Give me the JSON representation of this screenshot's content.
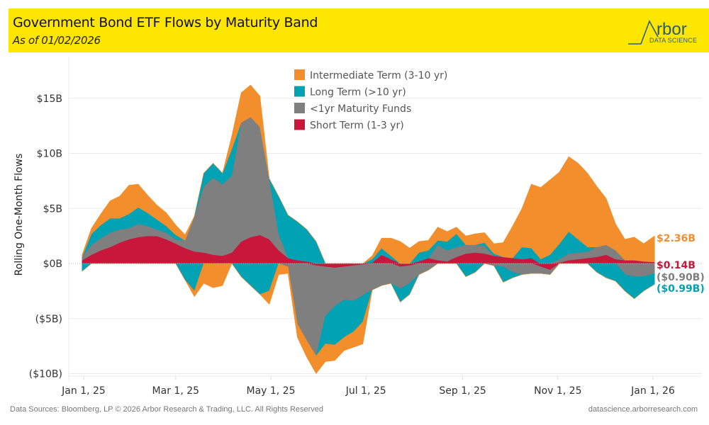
{
  "header": {
    "title": "Government Bond ETF Flows by Maturity Band",
    "subtitle": "As of 01/02/2026",
    "logo_word": "rbor",
    "logo_sub": "DATA SCIENCE"
  },
  "footer": {
    "source": "Data Sources: Bloomberg, LP © 2026 Arbor Research & Trading, LLC. All Rights Reserved",
    "website": "datascience.arborresearch.com"
  },
  "chart_data": {
    "type": "area",
    "stacked": true,
    "title": "Government Bond ETF Flows by Maturity Band",
    "subtitle": "As of 01/02/2026",
    "xlabel": "",
    "ylabel": "Rolling One-Month Flows",
    "ylim": [
      -10.5,
      18.5
    ],
    "yticks": [
      {
        "value": 15,
        "label": "$15B"
      },
      {
        "value": 10,
        "label": "$10B"
      },
      {
        "value": 5,
        "label": "$5B"
      },
      {
        "value": 0,
        "label": "$0B"
      },
      {
        "value": -5,
        "label": "($5B)"
      },
      {
        "value": -10,
        "label": "($10B)"
      }
    ],
    "xlim": [
      "2024-12-31",
      "2026-01-02"
    ],
    "xticks": [
      {
        "date": "2025-01-01",
        "label": "Jan 1, 25"
      },
      {
        "date": "2025-03-01",
        "label": "Mar 1, 25"
      },
      {
        "date": "2025-05-01",
        "label": "May 1, 25"
      },
      {
        "date": "2025-07-01",
        "label": "Jul 1, 25"
      },
      {
        "date": "2025-09-01",
        "label": "Sep 1, 25"
      },
      {
        "date": "2025-11-01",
        "label": "Nov 1, 25"
      },
      {
        "date": "2026-01-01",
        "label": "Jan 1, 26"
      }
    ],
    "grid": true,
    "legend_position": "top-center",
    "units": "USD billions",
    "x": [
      "2024-12-31",
      "2025-01-06",
      "2025-01-12",
      "2025-01-18",
      "2025-01-24",
      "2025-01-30",
      "2025-02-05",
      "2025-02-11",
      "2025-02-17",
      "2025-02-23",
      "2025-03-01",
      "2025-03-07",
      "2025-03-13",
      "2025-03-19",
      "2025-03-25",
      "2025-03-31",
      "2025-04-06",
      "2025-04-12",
      "2025-04-18",
      "2025-04-24",
      "2025-04-30",
      "2025-05-06",
      "2025-05-12",
      "2025-05-18",
      "2025-05-24",
      "2025-05-30",
      "2025-06-05",
      "2025-06-11",
      "2025-06-17",
      "2025-06-23",
      "2025-06-29",
      "2025-07-05",
      "2025-07-11",
      "2025-07-17",
      "2025-07-23",
      "2025-07-29",
      "2025-08-04",
      "2025-08-10",
      "2025-08-16",
      "2025-08-22",
      "2025-08-28",
      "2025-09-03",
      "2025-09-09",
      "2025-09-15",
      "2025-09-21",
      "2025-09-27",
      "2025-10-03",
      "2025-10-09",
      "2025-10-15",
      "2025-10-21",
      "2025-10-27",
      "2025-11-02",
      "2025-11-08",
      "2025-11-14",
      "2025-11-20",
      "2025-11-26",
      "2025-12-02",
      "2025-12-08",
      "2025-12-14",
      "2025-12-20",
      "2025-12-26",
      "2026-01-02"
    ],
    "series": [
      {
        "name": "Short Term (1-3 yr)",
        "color": "#c8173b",
        "values": [
          0.3,
          0.8,
          1.2,
          1.5,
          1.9,
          2.2,
          2.4,
          2.5,
          2.5,
          2.2,
          1.8,
          1.4,
          1.1,
          1.0,
          0.8,
          0.7,
          1.0,
          2.0,
          2.4,
          2.6,
          2.2,
          1.2,
          0.5,
          0.3,
          0.2,
          -0.2,
          -0.3,
          -0.4,
          -0.3,
          -0.2,
          -0.1,
          0.1,
          0.8,
          0.4,
          -0.3,
          -0.2,
          0.2,
          0.5,
          0.3,
          0.2,
          0.6,
          0.9,
          1.0,
          0.9,
          0.7,
          0.6,
          0.5,
          0.4,
          0.5,
          -0.3,
          -0.6,
          0.1,
          0.3,
          0.4,
          0.5,
          0.6,
          0.8,
          0.4,
          0.3,
          0.3,
          0.2,
          0.14
        ]
      },
      {
        "name": "<1yr Maturity Funds",
        "color": "#7f7f7f",
        "values": [
          0.3,
          0.9,
          1.1,
          1.3,
          1.2,
          1.0,
          1.2,
          0.9,
          0.6,
          0.6,
          0.4,
          0.7,
          3.2,
          6.0,
          7.0,
          6.5,
          7.0,
          10.8,
          10.9,
          9.8,
          5.5,
          1.5,
          -0.3,
          -5.5,
          -7.0,
          -8.2,
          -4.5,
          -3.5,
          -3.0,
          -3.2,
          -2.8,
          -2.4,
          -2.0,
          -1.8,
          -2.0,
          -1.6,
          -1.0,
          -0.6,
          1.4,
          1.0,
          0.9,
          0.8,
          0.7,
          0.7,
          -0.2,
          -0.3,
          -0.8,
          -1.0,
          -0.9,
          -0.6,
          -0.4,
          0.3,
          0.6,
          0.6,
          0.6,
          0.9,
          0.9,
          0.8,
          -1.0,
          -1.2,
          -1.2,
          -0.9
        ]
      },
      {
        "name": "Long Term (>10 yr)",
        "color": "#00a2b4",
        "values": [
          -0.7,
          1.0,
          1.2,
          1.3,
          1.0,
          1.3,
          1.5,
          1.2,
          0.9,
          0.6,
          0.4,
          -1.5,
          -2.5,
          1.2,
          1.3,
          1.0,
          2.4,
          -1.2,
          -2.0,
          -2.8,
          -2.5,
          3.4,
          3.9,
          3.5,
          2.9,
          2.0,
          -2.5,
          -3.5,
          -3.4,
          -2.8,
          -2.4,
          0.3,
          0.6,
          0.3,
          -1.2,
          -1.0,
          0.8,
          0.7,
          0.4,
          0.8,
          1.2,
          -1.2,
          -0.8,
          0.3,
          0.2,
          -1.4,
          -0.5,
          1.1,
          0.9,
          0.4,
          0.8,
          1.4,
          2.0,
          1.2,
          0.4,
          -0.8,
          -1.3,
          -1.6,
          -1.5,
          -2.0,
          -1.3,
          -0.99
        ]
      },
      {
        "name": "Intermediate Term (3-10 yr)",
        "color": "#f28e2b",
        "values": [
          0.2,
          0.5,
          1.0,
          1.6,
          2.0,
          2.6,
          2.1,
          1.6,
          1.3,
          1.2,
          0.9,
          0.5,
          -0.5,
          -1.8,
          -2.2,
          -2.0,
          1.2,
          2.7,
          2.9,
          2.8,
          -1.2,
          -1.0,
          -0.6,
          -1.2,
          -1.5,
          -1.6,
          -1.6,
          -1.4,
          -1.2,
          -1.4,
          -2.0,
          0.3,
          0.9,
          1.6,
          2.0,
          1.4,
          1.0,
          0.9,
          1.2,
          0.9,
          0.6,
          0.8,
          1.0,
          0.9,
          0.9,
          1.3,
          2.9,
          3.5,
          5.8,
          6.5,
          6.8,
          6.5,
          6.8,
          6.9,
          6.7,
          5.5,
          4.2,
          2.4,
          1.9,
          2.1,
          1.6,
          2.36
        ]
      }
    ],
    "end_labels": [
      {
        "series": "Intermediate Term (3-10 yr)",
        "label": "$2.36B",
        "value": 2.36,
        "color": "#f28e2b"
      },
      {
        "series": "Short Term (1-3 yr)",
        "label": "$0.14B",
        "value": 0.14,
        "color": "#c8173b"
      },
      {
        "series": "<1yr Maturity Funds",
        "label": "($0.90B)",
        "value": -0.9,
        "color": "#7f7f7f"
      },
      {
        "series": "Long Term (>10 yr)",
        "label": "($0.99B)",
        "value": -0.99,
        "color": "#00a2b4"
      }
    ],
    "legend": [
      {
        "label": "Intermediate Term (3-10 yr)",
        "color": "#f28e2b"
      },
      {
        "label": "Long Term (>10 yr)",
        "color": "#00a2b4"
      },
      {
        "label": "<1yr Maturity Funds",
        "color": "#7f7f7f"
      },
      {
        "label": "Short Term (1-3 yr)",
        "color": "#c8173b"
      }
    ]
  }
}
